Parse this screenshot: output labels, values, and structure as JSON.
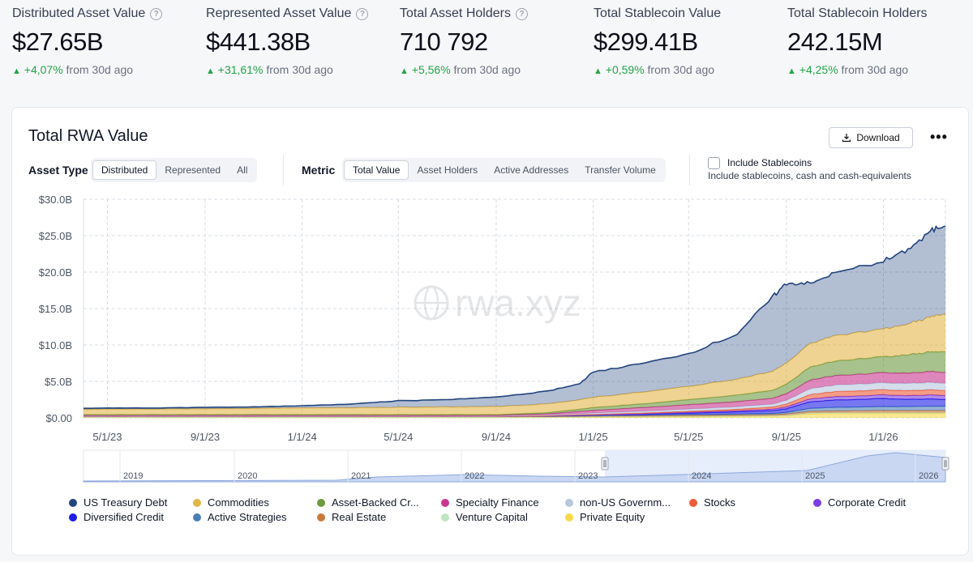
{
  "stats": [
    {
      "title": "Distributed Asset Value",
      "value": "$27.65B",
      "change": "+4,07%",
      "suffix": "from 30d ago",
      "help": true
    },
    {
      "title": "Represented Asset Value",
      "value": "$441.38B",
      "change": "+31,61%",
      "suffix": "from 30d ago",
      "help": true
    },
    {
      "title": "Total Asset Holders",
      "value": "710 792",
      "change": "+5,56%",
      "suffix": "from 30d ago",
      "help": true
    },
    {
      "title": "Total Stablecoin Value",
      "value": "$299.41B",
      "change": "+0,59%",
      "suffix": "from 30d ago",
      "help": false
    },
    {
      "title": "Total Stablecoin Holders",
      "value": "242.15M",
      "change": "+4,25%",
      "suffix": "from 30d ago",
      "help": false
    }
  ],
  "card": {
    "title": "Total RWA Value",
    "download_label": "Download",
    "more_label": "•••"
  },
  "controls": {
    "asset_type_label": "Asset Type",
    "asset_type_options": [
      "Distributed",
      "Represented",
      "All"
    ],
    "asset_type_selected": "Distributed",
    "metric_label": "Metric",
    "metric_options": [
      "Total Value",
      "Asset Holders",
      "Active Addresses",
      "Transfer Volume"
    ],
    "metric_selected": "Total Value",
    "include_stablecoins_label": "Include Stablecoins",
    "include_stablecoins_sub": "Include stablecoins, cash and cash-equivalents",
    "include_stablecoins_checked": false
  },
  "chart_data": {
    "type": "area",
    "watermark": "rwa.xyz",
    "y_ticks": [
      "$30.0B",
      "$25.0B",
      "$20.0B",
      "$15.0B",
      "$10.0B",
      "$5.0B",
      "$0.00"
    ],
    "ylim": [
      0,
      30
    ],
    "x_ticks": [
      "5/1/23",
      "9/1/23",
      "1/1/24",
      "5/1/24",
      "9/1/24",
      "1/1/25",
      "5/1/25",
      "9/1/25",
      "1/1/26"
    ],
    "navigator_ticks": [
      "2019",
      "2020",
      "2021",
      "2022",
      "2023",
      "2024",
      "2025",
      "2026"
    ],
    "x": [
      "4/1/23",
      "5/1/23",
      "7/1/23",
      "9/1/23",
      "11/1/23",
      "1/1/24",
      "3/1/24",
      "5/1/24",
      "7/1/24",
      "9/1/24",
      "11/1/24",
      "12/15/24",
      "1/1/25",
      "3/1/25",
      "5/1/25",
      "7/1/25",
      "8/15/25",
      "9/1/25",
      "10/1/25",
      "11/1/25",
      "1/1/26",
      "2/1/26",
      "3/1/26",
      "3/20/26"
    ],
    "series": [
      {
        "name": "Private Equity",
        "color": "#f6d94a",
        "values": [
          0.05,
          0.05,
          0.05,
          0.05,
          0.05,
          0.05,
          0.05,
          0.05,
          0.05,
          0.05,
          0.06,
          0.08,
          0.1,
          0.12,
          0.15,
          0.2,
          0.25,
          0.3,
          0.55,
          0.6,
          0.6,
          0.6,
          0.6,
          0.6
        ]
      },
      {
        "name": "Venture Capital",
        "color": "#bfe5c0",
        "values": [
          0.05,
          0.05,
          0.05,
          0.05,
          0.05,
          0.05,
          0.05,
          0.05,
          0.05,
          0.05,
          0.05,
          0.05,
          0.05,
          0.05,
          0.05,
          0.05,
          0.05,
          0.05,
          0.1,
          0.1,
          0.1,
          0.1,
          0.1,
          0.1
        ]
      },
      {
        "name": "Real Estate",
        "color": "#c87a3c",
        "values": [
          0.1,
          0.1,
          0.1,
          0.1,
          0.1,
          0.1,
          0.1,
          0.1,
          0.1,
          0.1,
          0.1,
          0.1,
          0.12,
          0.12,
          0.15,
          0.15,
          0.15,
          0.2,
          0.25,
          0.25,
          0.3,
          0.3,
          0.3,
          0.3
        ]
      },
      {
        "name": "Active Strategies",
        "color": "#4b7fb8",
        "values": [
          0,
          0,
          0,
          0,
          0,
          0,
          0,
          0,
          0,
          0,
          0.02,
          0.05,
          0.05,
          0.08,
          0.1,
          0.12,
          0.15,
          0.2,
          0.4,
          0.5,
          0.55,
          0.55,
          0.6,
          0.6
        ]
      },
      {
        "name": "Diversified Credit",
        "color": "#1d1ee8",
        "values": [
          0,
          0,
          0,
          0,
          0,
          0,
          0,
          0,
          0,
          0,
          0.02,
          0.05,
          0.05,
          0.1,
          0.2,
          0.3,
          0.4,
          0.5,
          0.9,
          1.0,
          1.1,
          1.0,
          1.0,
          0.9
        ]
      },
      {
        "name": "Corporate Credit",
        "color": "#7a3de0",
        "values": [
          0,
          0,
          0,
          0,
          0,
          0,
          0,
          0,
          0,
          0,
          0.02,
          0.05,
          0.05,
          0.08,
          0.1,
          0.15,
          0.2,
          0.25,
          0.4,
          0.45,
          0.5,
          0.5,
          0.55,
          0.55
        ]
      },
      {
        "name": "Stocks",
        "color": "#ee5a37",
        "values": [
          0,
          0,
          0,
          0,
          0,
          0,
          0,
          0,
          0,
          0,
          0.02,
          0.05,
          0.05,
          0.1,
          0.15,
          0.2,
          0.3,
          0.4,
          0.6,
          0.7,
          0.7,
          0.7,
          0.7,
          0.7
        ]
      },
      {
        "name": "non-US Government Debt",
        "color": "#b7c7de",
        "values": [
          0.05,
          0.05,
          0.05,
          0.05,
          0.05,
          0.05,
          0.05,
          0.05,
          0.05,
          0.05,
          0.1,
          0.15,
          0.2,
          0.25,
          0.3,
          0.35,
          0.4,
          0.5,
          0.8,
          0.9,
          0.95,
          1.0,
          1.0,
          1.0
        ]
      },
      {
        "name": "Specialty Finance",
        "color": "#c8378f",
        "values": [
          0.1,
          0.1,
          0.1,
          0.1,
          0.1,
          0.1,
          0.1,
          0.1,
          0.1,
          0.1,
          0.15,
          0.3,
          0.35,
          0.5,
          0.6,
          0.7,
          0.8,
          0.9,
          1.2,
          1.3,
          1.4,
          1.4,
          1.5,
          1.5
        ]
      },
      {
        "name": "Asset-Backed Credit",
        "color": "#6d9a3f",
        "values": [
          0.1,
          0.1,
          0.1,
          0.1,
          0.1,
          0.1,
          0.1,
          0.1,
          0.1,
          0.1,
          0.15,
          0.3,
          0.4,
          0.5,
          0.7,
          0.9,
          1.1,
          1.3,
          1.8,
          2.0,
          2.2,
          2.5,
          2.7,
          2.8
        ]
      },
      {
        "name": "Commodities",
        "color": "#e2b64a",
        "values": [
          0.7,
          0.75,
          0.75,
          0.8,
          0.85,
          0.9,
          0.95,
          1.0,
          1.05,
          1.1,
          1.2,
          1.3,
          1.4,
          1.6,
          1.8,
          2.2,
          2.6,
          2.9,
          3.2,
          3.5,
          3.8,
          4.2,
          4.8,
          5.2
        ]
      },
      {
        "name": "US Treasury Debt",
        "color": "#23457e",
        "values": [
          0.15,
          0.15,
          0.15,
          0.2,
          0.2,
          0.3,
          0.5,
          0.9,
          1.0,
          1.3,
          1.7,
          2.2,
          3.5,
          3.9,
          4.5,
          6.2,
          10.2,
          11.0,
          8.2,
          8.6,
          9.3,
          10.2,
          11.7,
          12.3
        ]
      }
    ],
    "legend": [
      "US Treasury Debt",
      "Commodities",
      "Asset-Backed Cr...",
      "Specialty Finance",
      "non-US Governm...",
      "Stocks",
      "Corporate Credit",
      "Diversified Credit",
      "Active Strategies",
      "Real Estate",
      "Venture Capital",
      "Private Equity"
    ],
    "legend_colors": [
      "#23457e",
      "#e2b64a",
      "#6d9a3f",
      "#c8378f",
      "#b7c7de",
      "#ee5a37",
      "#7a3de0",
      "#1d1ee8",
      "#4b7fb8",
      "#c87a3c",
      "#bfe5c0",
      "#f6d94a"
    ],
    "grid": true
  }
}
